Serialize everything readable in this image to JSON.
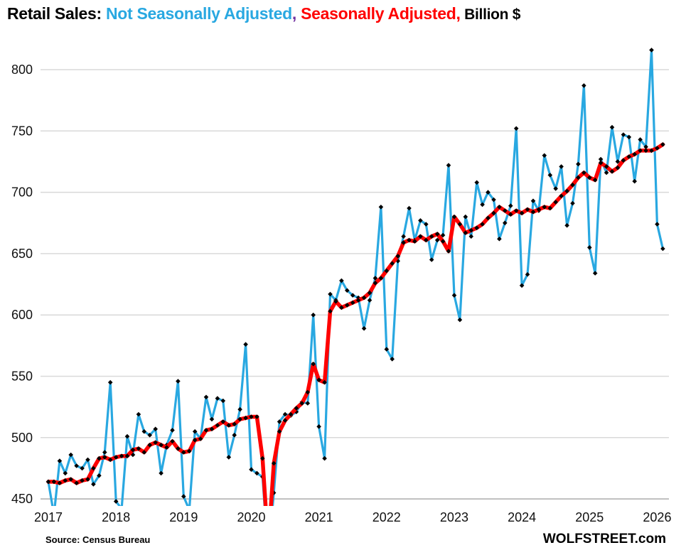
{
  "title": {
    "prefix": "Retail Sales: ",
    "nsa_label": "Not Seasonally Adjusted",
    "separator": ",",
    "sa_label": " Seasonally Adjusted,",
    "suffix": " Billion $"
  },
  "footer": {
    "source": "Source: Census Bureau",
    "brand": "WOLFSTREET.com"
  },
  "colors": {
    "nsa_line": "#29A8E1",
    "sa_line": "#FF0000",
    "marker": "#000000",
    "gridline": "#D9D9D9",
    "baseline": "#BFBFBF",
    "title_comma": "#7030A0",
    "text": "#111111"
  },
  "chart_data": {
    "type": "line",
    "title": "Retail Sales: Not Seasonally Adjusted, Seasonally Adjusted, Billion $",
    "xlabel": "",
    "ylabel": "Billion $",
    "start_month": "2017-01",
    "frequency": "monthly",
    "grid": "horizontal",
    "legend_position": "in-title",
    "x_tick_labels": [
      "2017",
      "2018",
      "2019",
      "2020",
      "2021",
      "2022",
      "2023",
      "2024",
      "2025",
      "2026"
    ],
    "y_ticks": [
      450,
      500,
      550,
      600,
      650,
      700,
      750,
      800
    ],
    "ylim": [
      450,
      820
    ],
    "series": [
      {
        "name": "Not Seasonally Adjusted",
        "color": "#29A8E1",
        "values": [
          464,
          437,
          481,
          471,
          486,
          477,
          475,
          482,
          462,
          469,
          488,
          545,
          448,
          442,
          501,
          486,
          519,
          505,
          502,
          507,
          471,
          494,
          506,
          546,
          452,
          441,
          505,
          499,
          533,
          515,
          532,
          530,
          484,
          502,
          523,
          576,
          474,
          471,
          468,
          403,
          455,
          513,
          519,
          518,
          521,
          529,
          528,
          600,
          509,
          483,
          617,
          612,
          628,
          620,
          616,
          614,
          589,
          612,
          630,
          688,
          572,
          564,
          644,
          664,
          687,
          661,
          677,
          674,
          645,
          661,
          665,
          722,
          616,
          596,
          680,
          664,
          708,
          690,
          700,
          694,
          662,
          675,
          689,
          752,
          624,
          633,
          693,
          685,
          730,
          714,
          703,
          721,
          673,
          691,
          723,
          787,
          655,
          634,
          727,
          716,
          753,
          725,
          747,
          745,
          709,
          743,
          737,
          816,
          674,
          654
        ]
      },
      {
        "name": "Seasonally Adjusted",
        "color": "#FF0000",
        "values": [
          464,
          464,
          463,
          465,
          466,
          463,
          465,
          466,
          475,
          483,
          484,
          482,
          484,
          485,
          485,
          490,
          491,
          488,
          494,
          496,
          494,
          492,
          497,
          491,
          488,
          489,
          498,
          499,
          506,
          507,
          510,
          513,
          510,
          511,
          515,
          516,
          517,
          517,
          483,
          412,
          479,
          505,
          514,
          519,
          524,
          528,
          537,
          560,
          547,
          545,
          603,
          611,
          606,
          608,
          610,
          612,
          614,
          618,
          626,
          630,
          636,
          642,
          648,
          659,
          661,
          660,
          664,
          661,
          664,
          666,
          660,
          652,
          680,
          674,
          667,
          669,
          671,
          674,
          679,
          683,
          688,
          685,
          682,
          685,
          683,
          686,
          684,
          686,
          688,
          687,
          692,
          697,
          701,
          706,
          712,
          716,
          712,
          710,
          724,
          721,
          717,
          720,
          726,
          729,
          731,
          734,
          734,
          734,
          736,
          739
        ]
      }
    ]
  }
}
